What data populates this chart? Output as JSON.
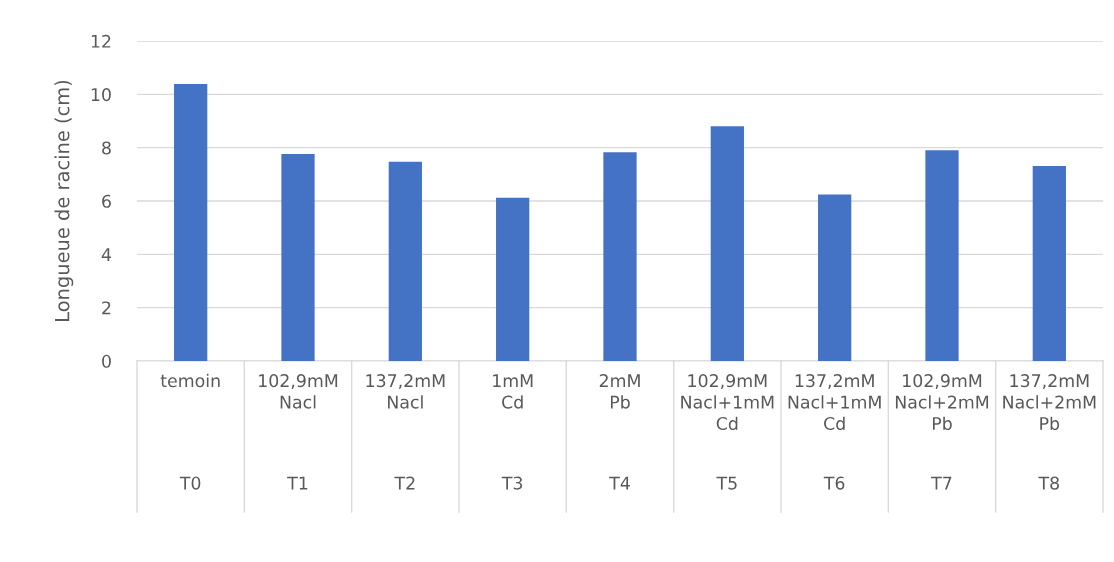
{
  "chart_data": {
    "type": "bar",
    "ylabel": "Longueue de racine (cm)",
    "categories": [
      "temoin",
      "102,9mM Nacl",
      "137,2mM Nacl",
      "1mM Cd",
      "2mM Pb",
      "102,9mM Nacl+1mM Cd",
      "137,2mM Nacl+1mM Cd",
      "102,9mM Nacl+2mM Pb",
      "137,2mM Nacl+2mM Pb"
    ],
    "values": [
      10.39,
      7.76,
      7.47,
      6.12,
      7.83,
      8.8,
      6.24,
      7.9,
      7.31
    ],
    "color": "#4472c4",
    "ylim": [
      0,
      12
    ],
    "yticks": [
      0,
      2,
      4,
      6,
      8,
      10,
      12
    ],
    "grid": "y",
    "annotations": [
      "T0",
      "T1",
      "T2",
      "T3",
      "T4",
      "T5",
      "T6",
      "T7",
      "T8"
    ]
  }
}
